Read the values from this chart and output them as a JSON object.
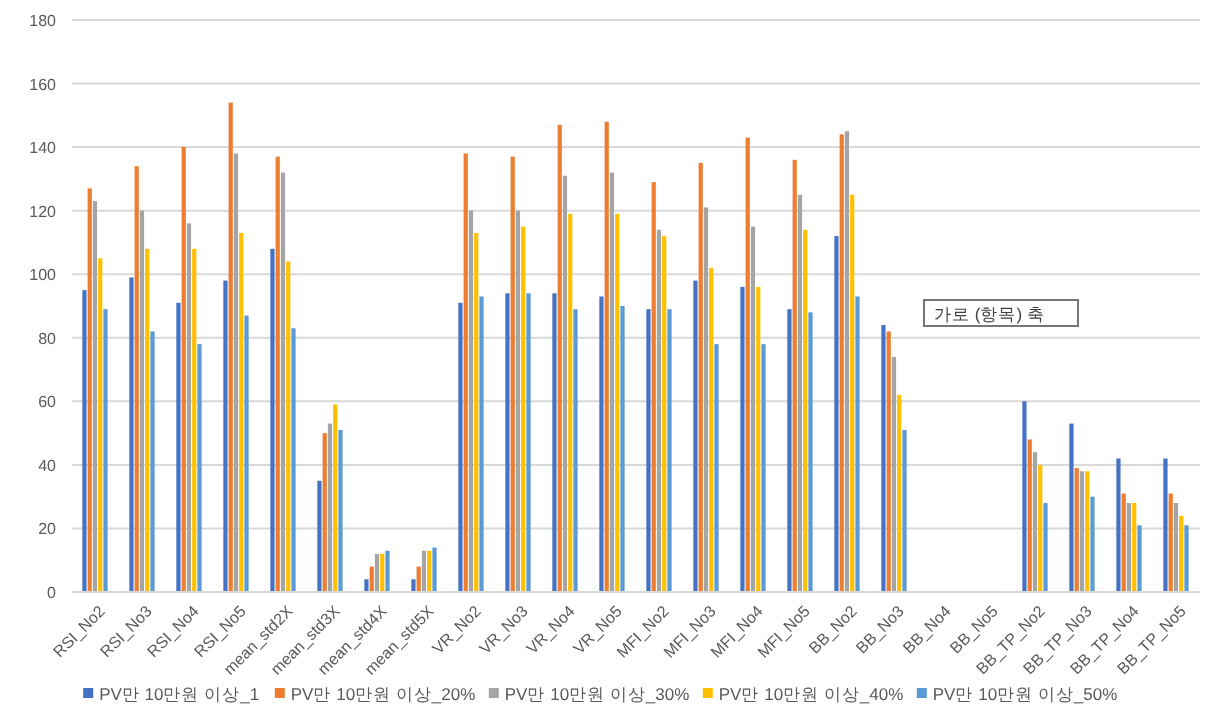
{
  "chart_data": {
    "type": "bar",
    "categories": [
      "RSI_No2",
      "RSI_No3",
      "RSI_No4",
      "RSI_No5",
      "mean_std2X",
      "mean_std3X",
      "mean_std4X",
      "mean_std5X",
      "VR_No2",
      "VR_No3",
      "VR_No4",
      "VR_No5",
      "MFI_No2",
      "MFI_No3",
      "MFI_No4",
      "MFI_No5",
      "BB_No2",
      "BB_No3",
      "BB_No4",
      "BB_No5",
      "BB_TP_No2",
      "BB_TP_No3",
      "BB_TP_No4",
      "BB_TP_No5"
    ],
    "series": [
      {
        "name": "PV만 10만원 이상_1",
        "color": "#4472c4",
        "values": [
          95,
          99,
          91,
          98,
          108,
          35,
          4,
          4,
          91,
          94,
          94,
          93,
          89,
          98,
          96,
          89,
          112,
          84,
          null,
          null,
          60,
          53,
          42,
          42
        ]
      },
      {
        "name": "PV만 10만원 이상_20%",
        "color": "#ed7d31",
        "values": [
          127,
          134,
          140,
          154,
          137,
          50,
          8,
          8,
          138,
          137,
          147,
          148,
          129,
          135,
          143,
          136,
          144,
          82,
          null,
          null,
          48,
          39,
          31,
          31
        ]
      },
      {
        "name": "PV만 10만원 이상_30%",
        "color": "#a5a5a5",
        "values": [
          123,
          120,
          116,
          138,
          132,
          53,
          12,
          13,
          120,
          120,
          131,
          132,
          114,
          121,
          115,
          125,
          145,
          74,
          null,
          null,
          44,
          38,
          28,
          28
        ]
      },
      {
        "name": "PV만 10만원 이상_40%",
        "color": "#ffc000",
        "values": [
          105,
          108,
          108,
          113,
          104,
          59,
          12,
          13,
          113,
          115,
          119,
          119,
          112,
          102,
          96,
          114,
          125,
          62,
          null,
          null,
          40,
          38,
          28,
          24
        ]
      },
      {
        "name": "PV만 10만원 이상_50%",
        "color": "#5b9bd5",
        "values": [
          89,
          82,
          78,
          87,
          83,
          51,
          13,
          14,
          93,
          94,
          89,
          90,
          89,
          78,
          78,
          88,
          93,
          51,
          null,
          null,
          28,
          30,
          21,
          21
        ]
      }
    ],
    "ylim": [
      0,
      180
    ],
    "yticks": [
      0,
      20,
      40,
      60,
      80,
      100,
      120,
      140,
      160,
      180
    ],
    "grid": "y",
    "legend": "bottom",
    "annotations": [
      "가로 (항목) 축"
    ]
  }
}
